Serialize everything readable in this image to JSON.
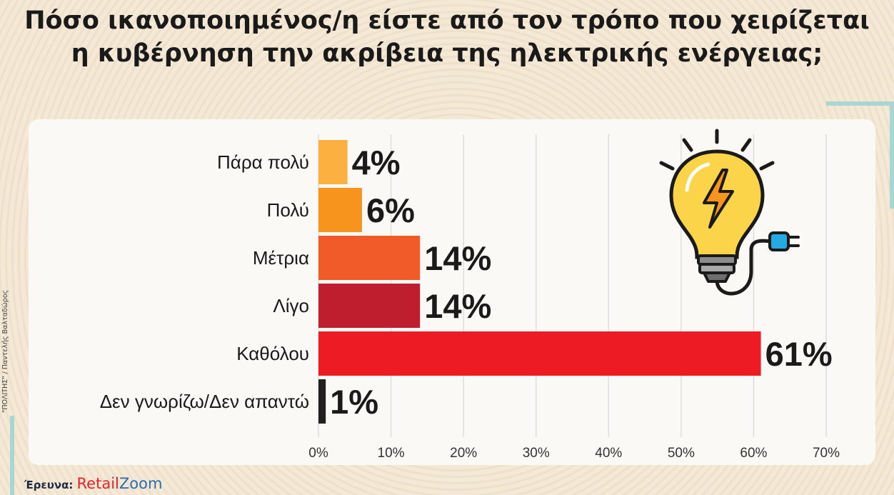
{
  "title_line1": "Πόσο ικανοποιημένος/η είστε από τον τρόπο που χειρίζεται",
  "title_line2": "η κυβέρνηση την ακρίβεια της ηλεκτρικής ενέργειας;",
  "credit": "\"ΠΟΛΙΤΗΣ\" / Παντελής Βαλταδώρος",
  "source": {
    "label": "Έρευνα:",
    "brand_part1": "Retail",
    "brand_part2": "Zoom"
  },
  "icons": {
    "illustration": "lightbulb-plug-icon"
  },
  "colors": {
    "bars": [
      "#fbb040",
      "#f7941d",
      "#f15a29",
      "#be1e2d",
      "#ed1c24",
      "#231f20"
    ],
    "teal_accent": "#a9d6d3"
  },
  "chart_data": {
    "type": "bar",
    "orientation": "horizontal",
    "categories": [
      "Πάρα πολύ",
      "Πολύ",
      "Μέτρια",
      "Λίγο",
      "Καθόλου",
      "Δεν γνωρίζω/Δεν απαντώ"
    ],
    "values": [
      4,
      6,
      14,
      14,
      61,
      1
    ],
    "value_labels": [
      "4%",
      "6%",
      "14%",
      "14%",
      "61%",
      "1%"
    ],
    "x_ticks": [
      "0%",
      "10%",
      "20%",
      "30%",
      "40%",
      "50%",
      "60%",
      "70%"
    ],
    "xlim": [
      0,
      70
    ],
    "grid": true
  }
}
